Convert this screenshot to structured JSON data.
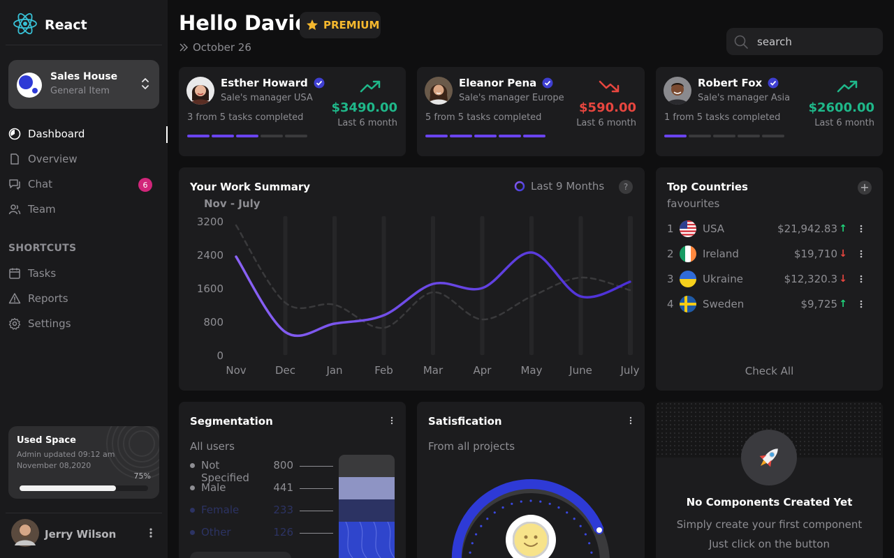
{
  "brand": {
    "name": "React"
  },
  "workspace": {
    "title": "Sales House",
    "subtitle": "General Item"
  },
  "nav": {
    "items": [
      {
        "label": "Dashboard",
        "icon": "dashboard-icon",
        "active": true
      },
      {
        "label": "Overview",
        "icon": "document-icon"
      },
      {
        "label": "Chat",
        "icon": "chat-icon",
        "badge": "6"
      },
      {
        "label": "Team",
        "icon": "team-icon"
      }
    ],
    "shortcuts_label": "SHORTCUTS",
    "shortcuts": [
      {
        "label": "Tasks",
        "icon": "calendar-icon"
      },
      {
        "label": "Reports",
        "icon": "warning-icon"
      },
      {
        "label": "Settings",
        "icon": "gear-icon"
      }
    ]
  },
  "used_space": {
    "title": "Used Space",
    "line1": "Admin updated 09:12 am",
    "line2": "November 08,2020",
    "percent_label": "75%",
    "percent": 75
  },
  "user": {
    "name": "Jerry Wilson"
  },
  "header": {
    "greeting": "Hello David",
    "badge": "PREMIUM",
    "date": "October 26",
    "search_placeholder": "search"
  },
  "colors": {
    "accent": "#5b3fe0",
    "positive": "#1fb88a",
    "negative": "#e8463f",
    "premium": "#f5b82e"
  },
  "managers": [
    {
      "name": "Esther Howard",
      "role": "Sale's manager USA",
      "tasks": "3 from 5 tasks completed",
      "completed": 3,
      "total": 5,
      "amount": "$3490.00",
      "period": "Last 6 month",
      "trend": "up"
    },
    {
      "name": "Eleanor Pena",
      "role": "Sale's manager Europe",
      "tasks": "5 from 5 tasks completed",
      "completed": 5,
      "total": 5,
      "amount": "$590.00",
      "period": "Last 6 month",
      "trend": "down"
    },
    {
      "name": "Robert Fox",
      "role": "Sale's manager Asia",
      "tasks": "1 from 5 tasks completed",
      "completed": 1,
      "total": 5,
      "amount": "$2600.00",
      "period": "Last 6 month",
      "trend": "up"
    }
  ],
  "work_summary": {
    "title": "Your Work Summary",
    "period": "Last 9 Months",
    "range": "Nov - July",
    "help": "?"
  },
  "chart_data": {
    "type": "line",
    "categories": [
      "Nov",
      "Dec",
      "Jan",
      "Feb",
      "Mar",
      "Apr",
      "May",
      "June",
      "July"
    ],
    "yticks": [
      0,
      800,
      1600,
      2400,
      3200
    ],
    "ylim": [
      0,
      3200
    ],
    "series": [
      {
        "values": [
          2350,
          550,
          750,
          950,
          1700,
          1600,
          2450,
          1400,
          1750
        ],
        "color": "#6f4ff2",
        "style": "solid"
      },
      {
        "values": [
          3100,
          1250,
          1200,
          650,
          1500,
          850,
          1400,
          1850,
          1550
        ],
        "color": "#3a3a3c",
        "style": "dashed"
      }
    ],
    "grid": false
  },
  "countries": {
    "title": "Top Countries",
    "subtitle": "favourites",
    "items": [
      {
        "rank": "1",
        "name": "USA",
        "value": "$21,942.83",
        "trend": "up",
        "flag": "usa"
      },
      {
        "rank": "2",
        "name": "Ireland",
        "value": "$19,710",
        "trend": "down",
        "flag": "ireland"
      },
      {
        "rank": "3",
        "name": "Ukraine",
        "value": "$12,320.3",
        "trend": "down",
        "flag": "ukraine"
      },
      {
        "rank": "4",
        "name": "Sweden",
        "value": "$9,725",
        "trend": "up",
        "flag": "sweden"
      }
    ],
    "check_all": "Check All"
  },
  "segmentation": {
    "title": "Segmentation",
    "subtitle": "All users",
    "items": [
      {
        "label": "Not Specified",
        "value": "800",
        "color": "#8e8e93"
      },
      {
        "label": "Male",
        "value": "441",
        "color": "#8e8e93"
      },
      {
        "label": "Female",
        "value": "233",
        "color": "#2c3363"
      },
      {
        "label": "Other",
        "value": "126",
        "color": "#2c3363"
      }
    ]
  },
  "satisfaction": {
    "title": "Satisfication",
    "subtitle": "From all projects"
  },
  "empty_state": {
    "title": "No Components Created Yet",
    "line1": "Simply create your first component",
    "line2": "Just click on the button"
  }
}
